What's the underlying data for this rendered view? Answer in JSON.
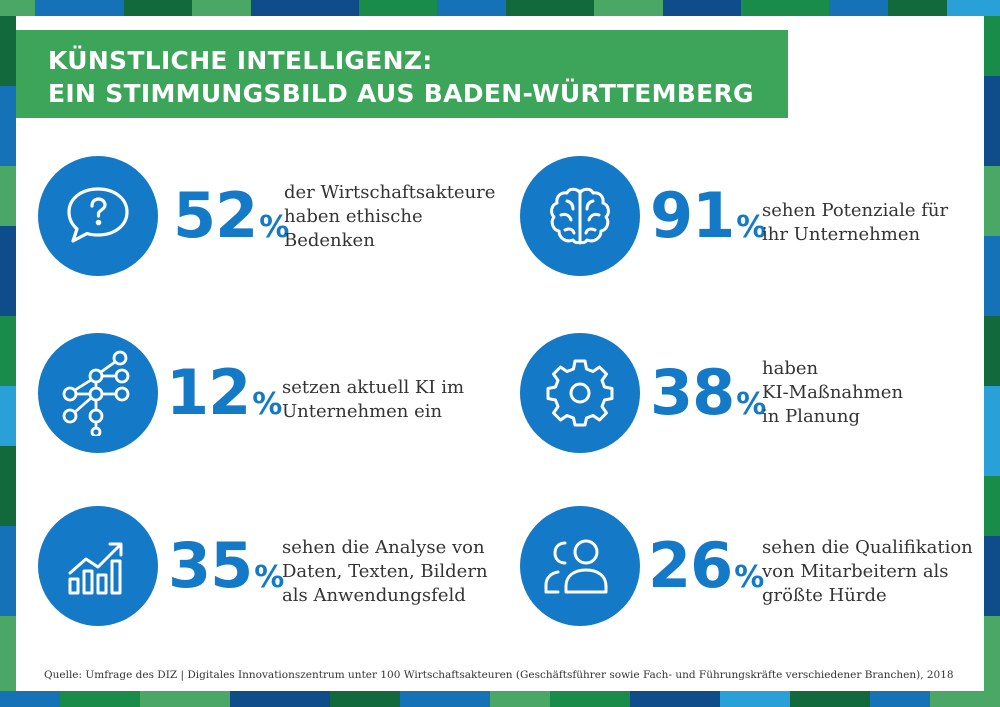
{
  "title": {
    "line1": "KÜNSTLICHE INTELLIGENZ:",
    "line2": "EIN STIMMUNGSBILD AUS BADEN-WÜRTTEMBERG"
  },
  "stats": [
    {
      "number": "52",
      "unit": "%",
      "icon": "speech-bubble-question-icon",
      "lines": [
        "der Wirtschaftsakteure",
        "haben ethische",
        "Bedenken"
      ]
    },
    {
      "number": "91",
      "unit": "%",
      "icon": "brain-icon",
      "lines": [
        "sehen Potenziale für",
        "ihr Unternehmen"
      ]
    },
    {
      "number": "12",
      "unit": "%",
      "icon": "neural-network-icon",
      "lines": [
        "setzen aktuell KI im",
        "Unternehmen ein"
      ]
    },
    {
      "number": "38",
      "unit": "%",
      "icon": "gear-icon",
      "lines": [
        "haben",
        "KI-Maßnahmen",
        "in Planung"
      ]
    },
    {
      "number": "35",
      "unit": "%",
      "icon": "rising-bar-chart-icon",
      "lines": [
        "sehen die Analyse von",
        "Daten, Texten, Bildern",
        "als Anwendungsfeld"
      ]
    },
    {
      "number": "26",
      "unit": "%",
      "icon": "people-icon",
      "lines": [
        "sehen die Qualifikation",
        "von Mitarbeitern als",
        "größte Hürde"
      ]
    }
  ],
  "source": "Quelle: Umfrage des DIZ | Digitales Innovationszentrum unter 100 Wirtschaftsakteuren (Geschäftsführer sowie Fach- und Führungskräfte verschiedener Branchen), 2018",
  "colors": {
    "accent_blue": "#1479c7",
    "title_green": "#3da55a",
    "text": "#333333"
  }
}
